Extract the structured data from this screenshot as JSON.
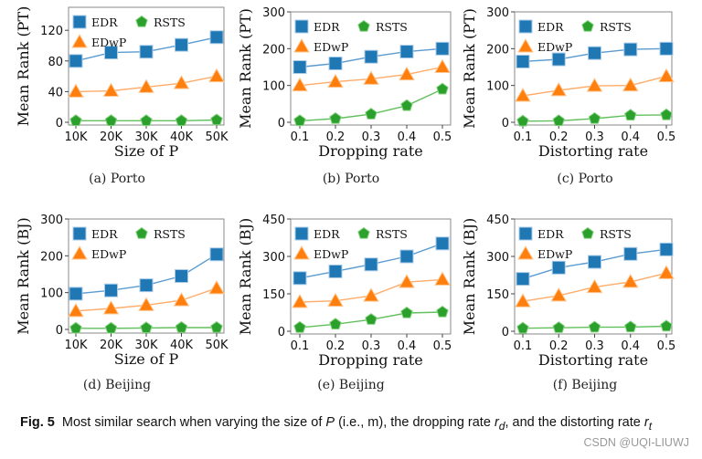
{
  "chart_data": [
    {
      "type": "line",
      "subcaption": "(a)  Porto",
      "xlabel": "Size of  P",
      "ylabel": "Mean Rank (PT)",
      "categories": [
        "10K",
        "20K",
        "30K",
        "40K",
        "50K"
      ],
      "ylim": [
        0,
        150
      ],
      "yticks": [
        0,
        40,
        80,
        120
      ],
      "grid": false,
      "legend": "top-left",
      "series": [
        {
          "name": "EDR",
          "values": [
            80,
            91,
            92,
            101,
            111
          ]
        },
        {
          "name": "RSTS",
          "values": [
            2,
            2,
            2,
            2,
            3
          ]
        },
        {
          "name": "EDwP",
          "values": [
            40,
            41,
            46,
            51,
            60
          ]
        }
      ]
    },
    {
      "type": "line",
      "subcaption": "(b)  Porto",
      "xlabel": "Dropping rate",
      "ylabel": "Mean Rank (PT)",
      "categories": [
        "0.1",
        "0.2",
        "0.3",
        "0.4",
        "0.5"
      ],
      "ylim": [
        0,
        300
      ],
      "yticks": [
        0,
        100,
        200,
        300
      ],
      "grid": false,
      "legend": "top-left",
      "series": [
        {
          "name": "EDR",
          "values": [
            150,
            160,
            178,
            192,
            200
          ]
        },
        {
          "name": "RSTS",
          "values": [
            4,
            10,
            22,
            45,
            90
          ]
        },
        {
          "name": "EDwP",
          "values": [
            100,
            110,
            118,
            130,
            150
          ]
        }
      ]
    },
    {
      "type": "line",
      "subcaption": "(c)  Porto",
      "xlabel": "Distorting rate",
      "ylabel": "Mean Rank (PT)",
      "categories": [
        "0.1",
        "0.2",
        "0.3",
        "0.4",
        "0.5"
      ],
      "ylim": [
        0,
        300
      ],
      "yticks": [
        0,
        100,
        200,
        300
      ],
      "grid": false,
      "legend": "top-left",
      "series": [
        {
          "name": "EDR",
          "values": [
            165,
            171,
            188,
            198,
            200
          ]
        },
        {
          "name": "RSTS",
          "values": [
            3,
            4,
            10,
            19,
            20
          ]
        },
        {
          "name": "EDwP",
          "values": [
            72,
            87,
            99,
            100,
            125
          ]
        }
      ]
    },
    {
      "type": "line",
      "subcaption": "(d)  Beijing",
      "xlabel": "Size of  P",
      "ylabel": "Mean Rank (BJ)",
      "categories": [
        "10K",
        "20K",
        "30K",
        "40K",
        "50K"
      ],
      "ylim": [
        0,
        300
      ],
      "yticks": [
        0,
        100,
        200,
        300
      ],
      "grid": false,
      "legend": "top-left",
      "series": [
        {
          "name": "EDR",
          "values": [
            97,
            106,
            120,
            145,
            204
          ]
        },
        {
          "name": "RSTS",
          "values": [
            3,
            3,
            4,
            5,
            5
          ]
        },
        {
          "name": "EDwP",
          "values": [
            50,
            57,
            66,
            79,
            112
          ]
        }
      ]
    },
    {
      "type": "line",
      "subcaption": "(e)  Beijing",
      "xlabel": "Dropping rate",
      "ylabel": "Mean Rank (BJ)",
      "categories": [
        "0.1",
        "0.2",
        "0.3",
        "0.4",
        "0.5"
      ],
      "ylim": [
        0,
        450
      ],
      "yticks": [
        0,
        150,
        300,
        450
      ],
      "grid": false,
      "legend": "top-left",
      "series": [
        {
          "name": "EDR",
          "values": [
            213,
            240,
            268,
            300,
            352
          ]
        },
        {
          "name": "RSTS",
          "values": [
            15,
            28,
            47,
            73,
            77
          ]
        },
        {
          "name": "EDwP",
          "values": [
            117,
            122,
            142,
            197,
            207
          ]
        }
      ]
    },
    {
      "type": "line",
      "subcaption": "(f)  Beijing",
      "xlabel": "Distorting rate",
      "ylabel": "Mean Rank (BJ)",
      "categories": [
        "0.1",
        "0.2",
        "0.3",
        "0.4",
        "0.5"
      ],
      "ylim": [
        0,
        450
      ],
      "yticks": [
        0,
        150,
        300,
        450
      ],
      "grid": false,
      "legend": "top-left",
      "series": [
        {
          "name": "EDR",
          "values": [
            210,
            255,
            278,
            310,
            328
          ]
        },
        {
          "name": "RSTS",
          "values": [
            12,
            14,
            16,
            17,
            20
          ]
        },
        {
          "name": "EDwP",
          "values": [
            120,
            143,
            177,
            198,
            233
          ]
        }
      ]
    }
  ],
  "colors": {
    "EDR": "#1f77b4",
    "EDwP": "#ff7f0e",
    "RSTS": "#2ca02c"
  },
  "markers": {
    "EDR": "square",
    "EDwP": "triangle",
    "RSTS": "pentagon"
  },
  "figure_caption": {
    "label": "Fig. 5",
    "text": "Most similar search when varying the size of P (i.e., m), the dropping rate r_d, and the distorting rate r_t"
  },
  "watermark": "CSDN @UQI-LIUWJ"
}
